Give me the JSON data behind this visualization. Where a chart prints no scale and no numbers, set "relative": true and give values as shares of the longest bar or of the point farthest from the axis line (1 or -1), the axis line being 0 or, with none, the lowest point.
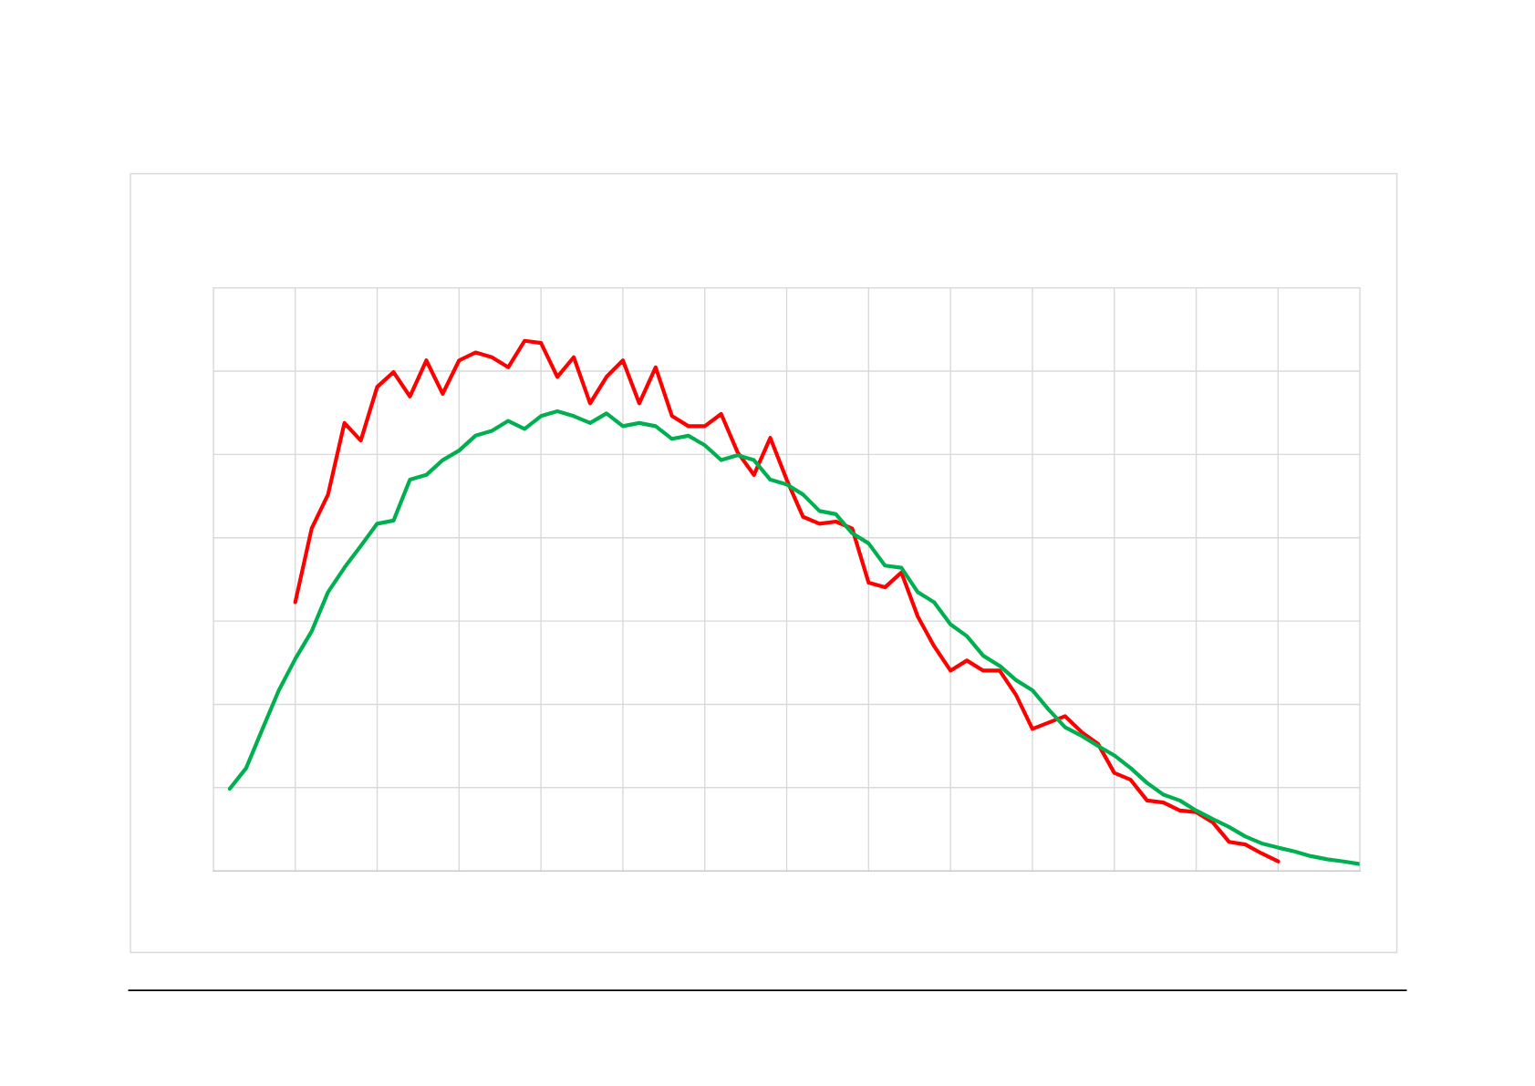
{
  "chart_data": {
    "type": "line",
    "relative": true,
    "grid": true,
    "line_style": "solid",
    "categories": [
      null,
      null,
      null,
      null,
      null,
      null,
      null,
      null,
      null,
      null,
      null,
      null,
      null,
      null,
      null,
      null,
      null,
      null,
      null,
      null,
      null,
      null,
      null,
      null,
      null,
      null,
      null,
      null,
      null,
      null,
      null,
      null,
      null,
      null,
      null,
      null,
      null,
      null,
      null,
      null,
      null,
      null,
      null,
      null,
      null,
      null,
      null,
      null,
      null,
      null,
      null,
      null,
      null,
      null,
      null,
      null,
      null,
      null,
      null,
      null,
      null,
      null,
      null,
      null,
      null,
      null,
      null,
      null,
      null,
      null,
      null
    ],
    "series": [
      {
        "color": "#ff0000",
        "values": [
          null,
          null,
          null,
          null,
          null,
          0.507,
          0.646,
          0.71,
          0.845,
          0.812,
          0.913,
          0.941,
          0.895,
          0.963,
          0.9,
          0.963,
          0.978,
          0.969,
          0.95,
          1,
          0.996,
          0.932,
          0.969,
          0.882,
          0.932,
          0.963,
          0.882,
          0.95,
          0.858,
          0.839,
          0.839,
          0.862,
          0.79,
          0.747,
          0.817,
          0.738,
          0.668,
          0.655,
          0.659,
          0.646,
          0.544,
          0.535,
          0.563,
          0.48,
          0.424,
          0.378,
          0.397,
          0.378,
          0.378,
          0.332,
          0.268,
          0.28,
          0.292,
          0.262,
          0.24,
          0.185,
          0.172,
          0.133,
          0.129,
          0.114,
          0.111,
          0.092,
          0.055,
          0.05,
          0.033,
          0.018,
          null,
          null,
          null,
          null,
          null
        ]
      },
      {
        "color": "#00b050",
        "values": [
          null,
          0.155,
          0.194,
          0.268,
          0.341,
          0.4,
          0.452,
          0.526,
          0.572,
          0.613,
          0.655,
          0.661,
          0.738,
          0.747,
          0.775,
          0.793,
          0.821,
          0.83,
          0.849,
          0.834,
          0.858,
          0.867,
          0.858,
          0.845,
          0.863,
          0.839,
          0.845,
          0.839,
          0.815,
          0.821,
          0.803,
          0.775,
          0.784,
          0.775,
          0.738,
          0.729,
          0.71,
          0.679,
          0.673,
          0.637,
          0.618,
          0.576,
          0.572,
          0.526,
          0.507,
          0.465,
          0.443,
          0.406,
          0.387,
          0.36,
          0.341,
          0.304,
          0.271,
          0.255,
          0.236,
          0.218,
          0.194,
          0.166,
          0.144,
          0.133,
          0.114,
          0.098,
          0.083,
          0.065,
          0.052,
          0.044,
          0.037,
          0.028,
          0.022,
          0.018,
          0.013
        ]
      }
    ]
  }
}
